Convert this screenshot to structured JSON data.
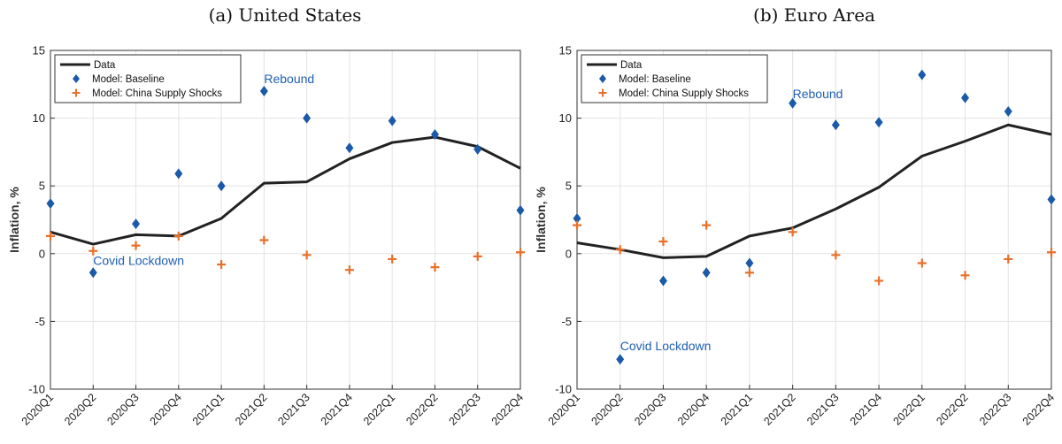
{
  "colors": {
    "data_line": "#222222",
    "baseline": "#1a5aa8",
    "china": "#e8702a",
    "annotation": "#1f5fb4",
    "grid": "#e3e3e3",
    "axis": "#333333"
  },
  "chart_data": [
    {
      "type": "line",
      "title": "(a) United States",
      "xlabel": "",
      "ylabel": "Inflation, %",
      "ylim": [
        -10,
        15
      ],
      "yticks": [
        -10,
        -5,
        0,
        5,
        10,
        15
      ],
      "grid": true,
      "legend_position": "top-left",
      "categories": [
        "2020Q1",
        "2020Q2",
        "2020Q3",
        "2020Q4",
        "2021Q1",
        "2021Q2",
        "2021Q3",
        "2021Q4",
        "2022Q1",
        "2022Q2",
        "2022Q3",
        "2022Q4"
      ],
      "series": [
        {
          "name": "Data",
          "marker": "line",
          "values": [
            1.6,
            0.7,
            1.4,
            1.3,
            2.6,
            5.2,
            5.3,
            7.0,
            8.2,
            8.6,
            7.9,
            6.3
          ]
        },
        {
          "name": "Model: Baseline",
          "marker": "diamond",
          "values": [
            3.7,
            -1.4,
            2.2,
            5.9,
            5.0,
            12.0,
            10.0,
            7.8,
            9.8,
            8.8,
            7.7,
            3.2
          ]
        },
        {
          "name": "Model: China Supply Shocks",
          "marker": "plus",
          "values": [
            1.3,
            0.2,
            0.6,
            1.3,
            -0.8,
            1.0,
            -0.1,
            -1.2,
            -0.4,
            -1.0,
            -0.2,
            0.1
          ]
        }
      ],
      "annotations": [
        {
          "text": "Covid Lockdown",
          "x": "2020Q2",
          "y": -0.5
        },
        {
          "text": "Rebound",
          "x": "2021Q2",
          "y": 12.9
        }
      ]
    },
    {
      "type": "line",
      "title": "(b) Euro Area",
      "xlabel": "",
      "ylabel": "Inflation, %",
      "ylim": [
        -10,
        15
      ],
      "yticks": [
        -10,
        -5,
        0,
        5,
        10,
        15
      ],
      "grid": true,
      "legend_position": "top-left",
      "categories": [
        "2020Q1",
        "2020Q2",
        "2020Q3",
        "2020Q4",
        "2021Q1",
        "2021Q2",
        "2021Q3",
        "2021Q4",
        "2022Q1",
        "2022Q2",
        "2022Q3",
        "2022Q4"
      ],
      "series": [
        {
          "name": "Data",
          "marker": "line",
          "values": [
            0.8,
            0.3,
            -0.3,
            -0.2,
            1.3,
            1.9,
            3.3,
            4.9,
            7.2,
            8.3,
            9.5,
            8.8
          ]
        },
        {
          "name": "Model: Baseline",
          "marker": "diamond",
          "values": [
            2.6,
            -7.8,
            -2.0,
            -1.4,
            -0.7,
            11.1,
            9.5,
            9.7,
            13.2,
            11.5,
            10.5,
            4.0
          ]
        },
        {
          "name": "Model: China Supply Shocks",
          "marker": "plus",
          "values": [
            2.1,
            0.3,
            0.9,
            2.1,
            -1.4,
            1.6,
            -0.1,
            -2.0,
            -0.7,
            -1.6,
            -0.4,
            0.1
          ]
        }
      ],
      "annotations": [
        {
          "text": "Covid Lockdown",
          "x": "2020Q2",
          "y": -6.8
        },
        {
          "text": "Rebound",
          "x": "2021Q2",
          "y": 11.8
        }
      ]
    }
  ]
}
